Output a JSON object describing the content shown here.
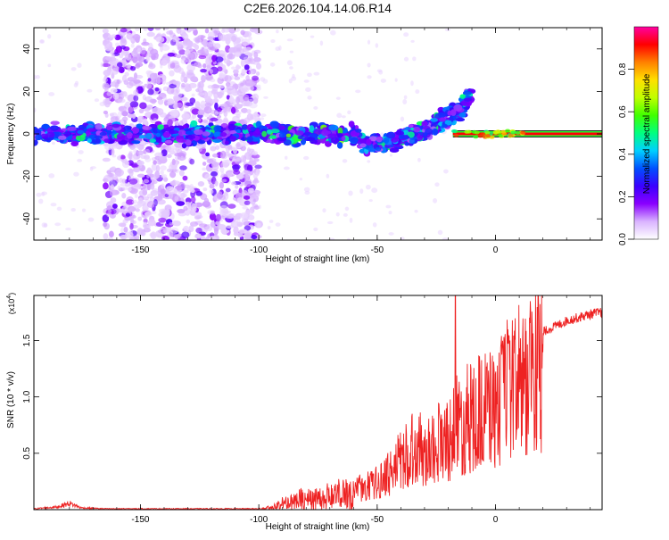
{
  "page": {
    "title": "C2E6.2026.104.14.06.R14"
  },
  "colorbar": {
    "label": "Normalized spectral amplitude",
    "ticks": [
      "0.0",
      "0.2",
      "0.4",
      "0.6",
      "0.8"
    ],
    "tick_values": [
      0.0,
      0.2,
      0.4,
      0.6,
      0.8
    ],
    "range": [
      0.0,
      1.0
    ],
    "colors": [
      "#ffffff",
      "#d9b3ff",
      "#8a00ff",
      "#3a00ff",
      "#0050ff",
      "#00d0ff",
      "#00ff80",
      "#40ff00",
      "#c0ff00",
      "#ffe000",
      "#ff8000",
      "#ff0000",
      "#ff00a0"
    ]
  },
  "chart_data": [
    {
      "type": "heatmap",
      "title": "",
      "xlabel": "Height of straight line (km)",
      "ylabel": "Frequency (Hz)",
      "xlim": [
        -195,
        45
      ],
      "ylim": [
        -50,
        50
      ],
      "x_ticks": [
        "-150",
        "-100",
        "-50",
        "0"
      ],
      "x_tick_values": [
        -150,
        -100,
        -50,
        0
      ],
      "y_ticks": [
        "40",
        "20",
        "0",
        "-20",
        "-40"
      ],
      "y_tick_values": [
        40,
        20,
        0,
        -20,
        -40
      ],
      "features": {
        "noise_band_x": [
          -165,
          -100
        ],
        "dense_band_x": [
          -195,
          -20
        ],
        "doppler_trace": [
          [
            -195,
            0
          ],
          [
            -180,
            0
          ],
          [
            -160,
            0
          ],
          [
            -140,
            0
          ],
          [
            -120,
            0
          ],
          [
            -100,
            0
          ],
          [
            -80,
            0
          ],
          [
            -60,
            0
          ],
          [
            -55,
            -5
          ],
          [
            -45,
            -5
          ],
          [
            -40,
            -2
          ],
          [
            -30,
            2
          ],
          [
            -25,
            5
          ],
          [
            -20,
            8
          ],
          [
            -15,
            12
          ],
          [
            -10,
            18
          ]
        ],
        "strong_line_x": [
          -18,
          45
        ],
        "strong_line_freq": 0
      }
    },
    {
      "type": "line",
      "title": "",
      "xlabel": "Height of straight line (km)",
      "ylabel": "SNR (10 * v/v)",
      "y_multiplier": "(x10",
      "y_multiplier_exp": "4",
      "y_multiplier_close": ")",
      "xlim": [
        -195,
        45
      ],
      "ylim": [
        0,
        1.9
      ],
      "x_ticks": [
        "-150",
        "-100",
        "-50",
        "0"
      ],
      "x_tick_values": [
        -150,
        -100,
        -50,
        0
      ],
      "y_ticks": [
        "0.5",
        "1.0",
        "1.5"
      ],
      "y_tick_values": [
        0.5,
        1.0,
        1.5
      ],
      "color": "#ee2222",
      "envelope": {
        "x": [
          -195,
          -185,
          -180,
          -175,
          -165,
          -150,
          -130,
          -110,
          -100,
          -95,
          -90,
          -85,
          -80,
          -75,
          -70,
          -65,
          -60,
          -55,
          -50,
          -45,
          -40,
          -35,
          -30,
          -25,
          -20,
          -18,
          -15,
          -12,
          -10,
          -5,
          0,
          5,
          10,
          15,
          20,
          25,
          30,
          35,
          40,
          45
        ],
        "y": [
          0.01,
          0.03,
          0.07,
          0.02,
          0.01,
          0.01,
          0.01,
          0.01,
          0.01,
          0.03,
          0.08,
          0.12,
          0.15,
          0.14,
          0.18,
          0.2,
          0.22,
          0.25,
          0.3,
          0.4,
          0.55,
          0.7,
          0.65,
          0.75,
          0.8,
          0.9,
          0.95,
          1.0,
          1.05,
          1.1,
          1.15,
          1.3,
          1.4,
          1.5,
          1.6,
          1.65,
          1.7,
          1.73,
          1.76,
          1.78
        ]
      },
      "peak": [
        -17,
        1.9
      ]
    }
  ]
}
